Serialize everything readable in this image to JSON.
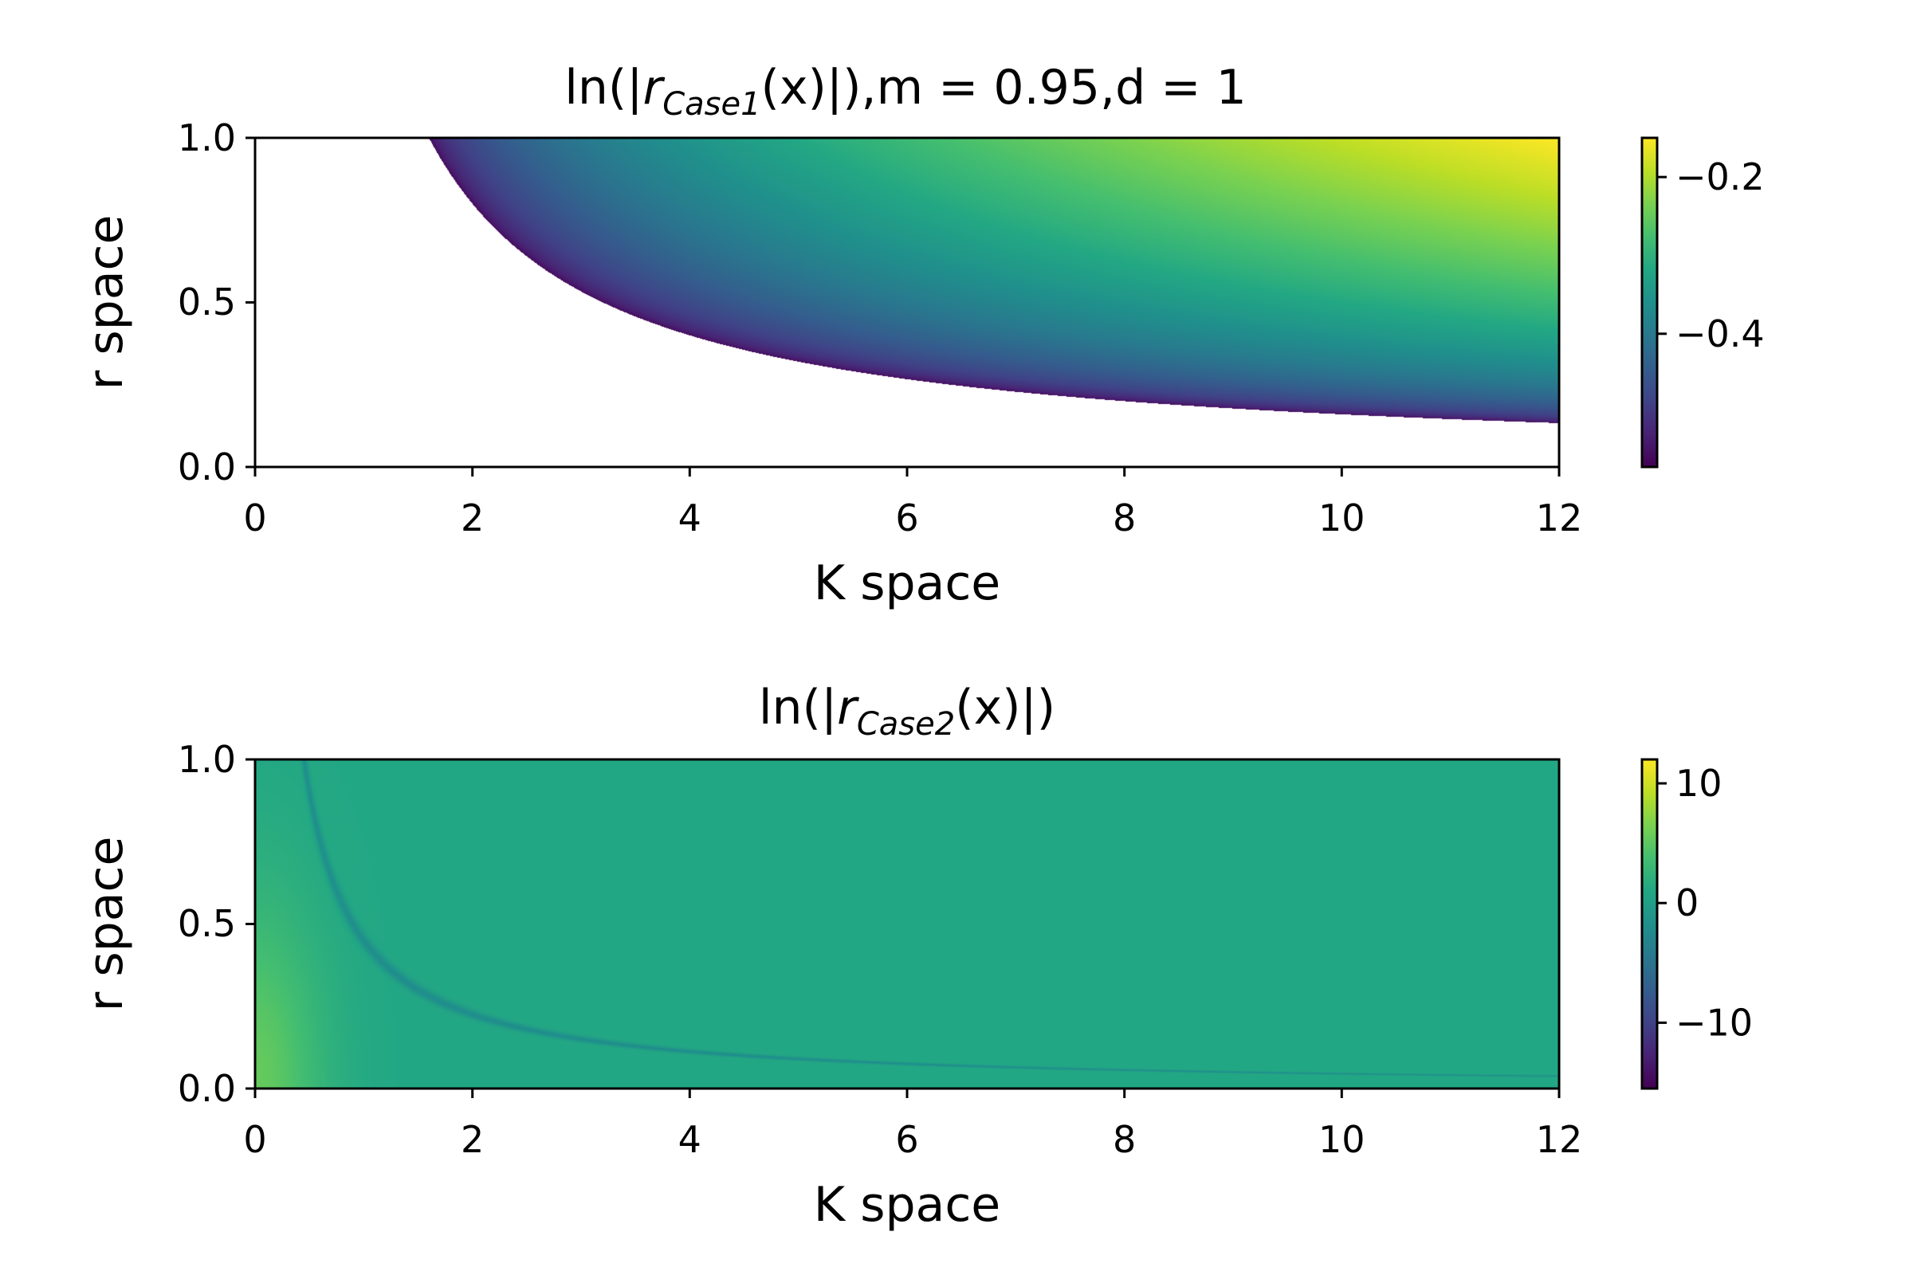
{
  "chart_data": [
    {
      "type": "heatmap",
      "title": {
        "prefix": "ln(|",
        "symbol": "r",
        "subscript": "Case1",
        "arg": "(x)",
        "suffix": "|),m = 0.95,d = 1"
      },
      "xlabel": "K space",
      "ylabel": "r space",
      "xlim": [
        0,
        12
      ],
      "ylim": [
        0,
        1
      ],
      "x_ticks": [
        "0",
        "2",
        "4",
        "6",
        "8",
        "10",
        "12"
      ],
      "y_ticks": [
        "0.0",
        "0.5",
        "1.0"
      ],
      "colormap": "viridis",
      "colorbar": {
        "range": [
          -0.57,
          -0.15
        ],
        "ticks": [
          -0.2,
          -0.4
        ],
        "tick_labels": [
          "−0.2",
          "−0.4"
        ]
      },
      "masked_region": "blank where K * r < 1.6",
      "valid_boundary_Kr": 1.6,
      "corner_values": {
        "boundary": -0.57,
        "K12_r1": -0.15
      }
    },
    {
      "type": "heatmap",
      "title": {
        "prefix": "ln(|",
        "symbol": "r",
        "subscript": "Case2",
        "arg": "(x)",
        "suffix": "|)"
      },
      "xlabel": "K space",
      "ylabel": "r space",
      "xlim": [
        0,
        12
      ],
      "ylim": [
        0,
        1
      ],
      "x_ticks": [
        "0",
        "2",
        "4",
        "6",
        "8",
        "10",
        "12"
      ],
      "y_ticks": [
        "0.0",
        "0.5",
        "1.0"
      ],
      "colormap": "viridis",
      "colorbar": {
        "range": [
          -15.5,
          12
        ],
        "ticks": [
          10,
          0,
          -10
        ],
        "tick_labels": [
          "10",
          "0",
          "−10"
        ]
      },
      "background_value": 1,
      "dip_curve_Kr": 0.45,
      "dip_value": -4.5,
      "origin_value": 5.5
    }
  ]
}
